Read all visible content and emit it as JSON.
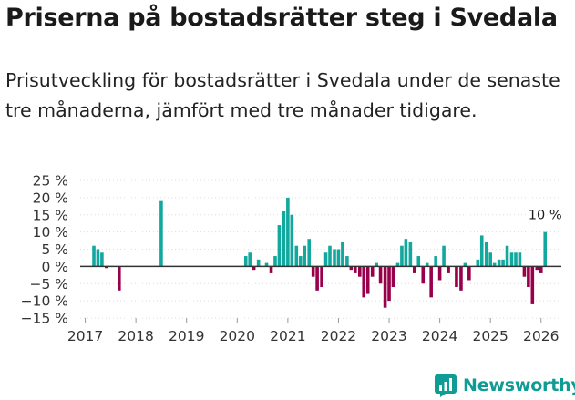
{
  "title": "Priserna på bostadsrätter steg i Svedala",
  "subtitle": "Prisutveckling för bostadsrätter i Svedala under de senaste tre månaderna, jämfört med tre månader tidigare.",
  "logo_text": "Newsworthy",
  "colors": {
    "positive": "#13a89e",
    "negative": "#99004c",
    "axis": "#333333",
    "grid": "#dddddd",
    "brand": "#0e9c95"
  },
  "chart_data": {
    "type": "bar",
    "ylim": [
      -15,
      25
    ],
    "y_ticks": [
      -15,
      -10,
      -5,
      0,
      5,
      10,
      15,
      20,
      25
    ],
    "y_tick_labels": [
      "−15 %",
      "−10 %",
      "−5 %",
      "0 %",
      "5 %",
      "10 %",
      "15 %",
      "20 %",
      "25 %"
    ],
    "x_tick_labels": [
      "2017",
      "2018",
      "2019",
      "2020",
      "2021",
      "2022",
      "2023",
      "2024",
      "2025",
      "2026"
    ],
    "x_tick_years": [
      2017,
      2018,
      2019,
      2020,
      2021,
      2022,
      2023,
      2024,
      2025,
      2026
    ],
    "x_range": [
      2016.9,
      2026.4
    ],
    "annotation": {
      "text": "10 %",
      "x": 2026.08,
      "y": 10
    },
    "series": [
      {
        "name": "Prisutveckling",
        "x": [
          2017.17,
          2017.25,
          2017.33,
          2017.42,
          2017.67,
          2018.5,
          2020.17,
          2020.25,
          2020.33,
          2020.42,
          2020.58,
          2020.67,
          2020.75,
          2020.83,
          2020.92,
          2021.0,
          2021.08,
          2021.17,
          2021.25,
          2021.33,
          2021.42,
          2021.5,
          2021.58,
          2021.67,
          2021.75,
          2021.83,
          2021.92,
          2022.0,
          2022.08,
          2022.17,
          2022.25,
          2022.33,
          2022.42,
          2022.5,
          2022.58,
          2022.67,
          2022.75,
          2022.83,
          2022.92,
          2023.0,
          2023.08,
          2023.17,
          2023.25,
          2023.33,
          2023.42,
          2023.5,
          2023.58,
          2023.67,
          2023.75,
          2023.83,
          2023.92,
          2024.0,
          2024.08,
          2024.17,
          2024.25,
          2024.33,
          2024.42,
          2024.5,
          2024.58,
          2024.67,
          2024.75,
          2024.83,
          2024.92,
          2025.0,
          2025.08,
          2025.17,
          2025.25,
          2025.33,
          2025.42,
          2025.5,
          2025.58,
          2025.67,
          2025.75,
          2025.83,
          2025.92,
          2026.0,
          2026.08
        ],
        "values": [
          6,
          5,
          4,
          -0.5,
          -7,
          19,
          3,
          4,
          -1,
          2,
          1,
          -2,
          3,
          12,
          16,
          20,
          15,
          6,
          3,
          6,
          8,
          -3,
          -7,
          -6,
          4,
          6,
          5,
          5,
          7,
          3,
          -1,
          -2,
          -3,
          -9,
          -8,
          -3,
          1,
          -5,
          -12,
          -10,
          -6,
          1,
          6,
          8,
          7,
          -2,
          3,
          -5,
          1,
          -9,
          3,
          -4,
          6,
          -2,
          0,
          -6,
          -7,
          1,
          -4,
          0,
          2,
          9,
          7,
          4,
          1,
          2,
          2,
          6,
          4,
          4,
          4,
          -3,
          -6,
          -11,
          -1,
          -2,
          10
        ]
      }
    ]
  }
}
